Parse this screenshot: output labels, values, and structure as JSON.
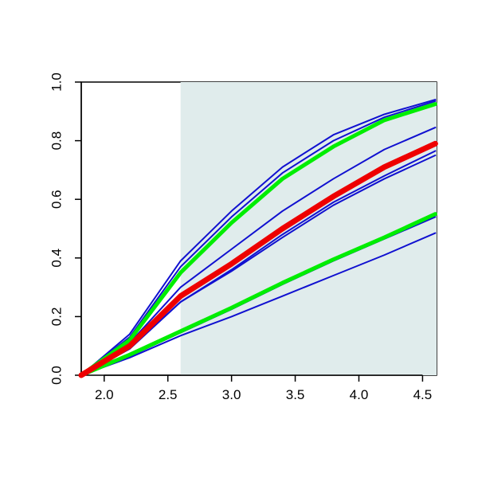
{
  "chart_data": {
    "type": "line",
    "x": [
      1.82,
      2.2,
      2.6,
      3.0,
      3.4,
      3.8,
      4.2,
      4.6
    ],
    "series": [
      {
        "color": "#1010d0",
        "line_width": 2,
        "values": [
          0,
          0.14,
          0.39,
          0.56,
          0.71,
          0.82,
          0.89,
          0.94
        ]
      },
      {
        "color": "#1010d0",
        "line_width": 2,
        "values": [
          0,
          0.13,
          0.37,
          0.54,
          0.69,
          0.8,
          0.88,
          0.935
        ]
      },
      {
        "color": "#1010d0",
        "line_width": 2,
        "values": [
          0,
          0.11,
          0.3,
          0.43,
          0.56,
          0.67,
          0.77,
          0.845
        ]
      },
      {
        "color": "#1010d0",
        "line_width": 2,
        "values": [
          0,
          0.09,
          0.25,
          0.36,
          0.48,
          0.59,
          0.68,
          0.765
        ]
      },
      {
        "color": "#1010d0",
        "line_width": 2,
        "values": [
          0,
          0.09,
          0.25,
          0.355,
          0.47,
          0.58,
          0.67,
          0.75
        ]
      },
      {
        "color": "#1010d0",
        "line_width": 2,
        "values": [
          0,
          0.065,
          0.145,
          0.225,
          0.31,
          0.39,
          0.465,
          0.54
        ]
      },
      {
        "color": "#1010d0",
        "line_width": 2,
        "values": [
          0,
          0.06,
          0.135,
          0.2,
          0.27,
          0.34,
          0.41,
          0.485
        ]
      },
      {
        "color": "#00ee00",
        "line_width": 5,
        "values": [
          0,
          0.12,
          0.35,
          0.52,
          0.67,
          0.78,
          0.87,
          0.925
        ]
      },
      {
        "color": "#00ee00",
        "line_width": 5,
        "values": [
          0,
          0.07,
          0.15,
          0.23,
          0.315,
          0.395,
          0.47,
          0.55
        ]
      },
      {
        "color": "#ee0000",
        "line_width": 7,
        "values": [
          0,
          0.1,
          0.27,
          0.38,
          0.5,
          0.61,
          0.71,
          0.79
        ]
      }
    ],
    "shaded_xrange": [
      2.6,
      4.61
    ],
    "shade_color": "#e0ecec",
    "xlim": [
      1.82,
      4.61
    ],
    "ylim": [
      0,
      1
    ],
    "xticks": [
      {
        "value": 2,
        "label": "2.0"
      },
      2.5,
      {
        "value": 3,
        "label": "3.0"
      },
      3.5,
      {
        "value": 4,
        "label": "4.0"
      },
      4.5
    ],
    "yticks": [
      {
        "value": 0,
        "label": "0.0"
      },
      0.2,
      0.4,
      0.6,
      0.8,
      {
        "value": 1,
        "label": "1.0"
      }
    ]
  }
}
